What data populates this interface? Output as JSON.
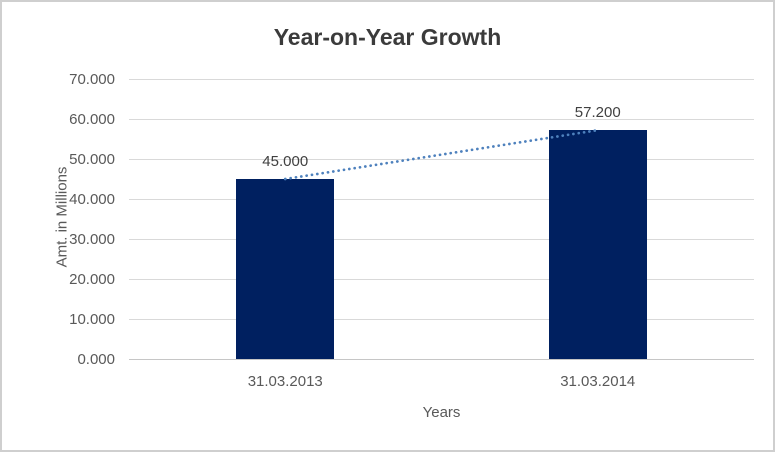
{
  "chart_data": {
    "type": "bar",
    "title": "Year-on-Year Growth",
    "categories": [
      "31.03.2013",
      "31.03.2014"
    ],
    "values": [
      45000,
      57200
    ],
    "data_labels": [
      "45.000",
      "57.200"
    ],
    "xlabel": "Years",
    "ylabel": "Amt. in Millions",
    "ylim": [
      0,
      70000
    ],
    "ytick_step": 10000,
    "ytick_labels": [
      "0.000",
      "10.000",
      "20.000",
      "30.000",
      "40.000",
      "50.000",
      "60.000",
      "70.000"
    ],
    "grid": true,
    "legend": "none",
    "trendline": {
      "type": "linear",
      "style": "dotted",
      "color": "#4E81BD",
      "values": [
        45000,
        57200
      ]
    },
    "colors": {
      "bar": "#002060",
      "gridline": "#D9D9D9",
      "axis_line": "#C6C6C6",
      "title_text": "#3B3B3B",
      "tick_text": "#595959",
      "axis_title_text": "#595959",
      "data_label_text": "#404040",
      "background": "#FFFFFF",
      "frame_border": "#CFCFCF"
    }
  }
}
